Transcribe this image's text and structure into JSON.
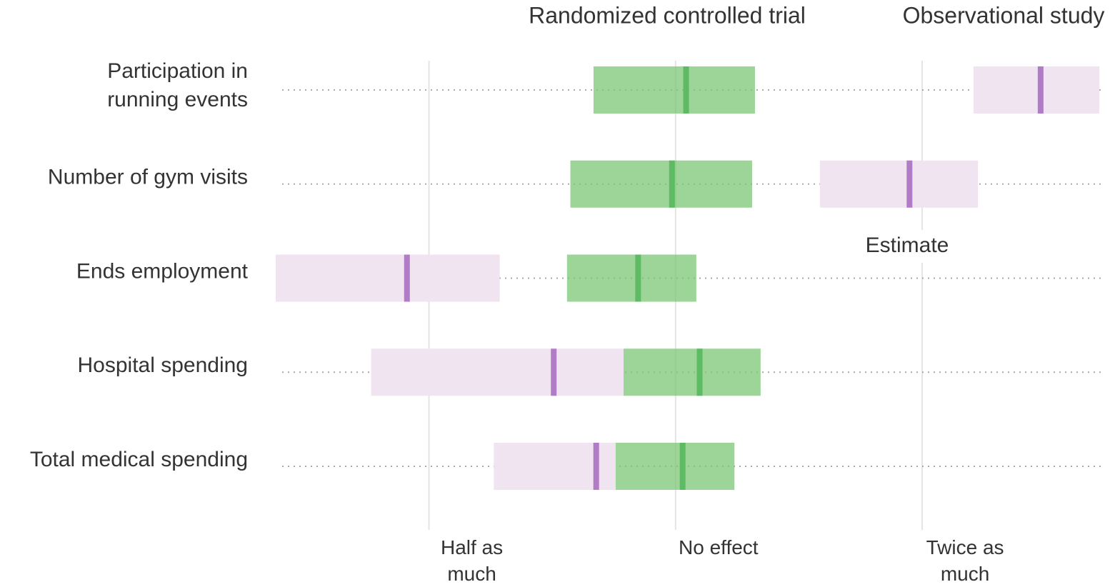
{
  "chart_data": {
    "type": "interval",
    "categories": [
      "Participation in running events",
      "Number of gym visits",
      "Ends employment",
      "Hospital spending",
      "Total medical spending"
    ],
    "series": [
      {
        "name": "Observational study",
        "color": "#f1e4f1",
        "estimate_color": "#b07cc6",
        "low": [
          2.31,
          1.5,
          0.325,
          0.425,
          0.6
        ],
        "values": [
          2.79,
          1.93,
          0.47,
          0.71,
          0.8
        ],
        "high": [
          3.29,
          2.34,
          0.61,
          0.864,
          0.845
        ]
      },
      {
        "name": "Randomized controlled trial",
        "color": "#7cc576",
        "estimate_color": "#5dbb63",
        "low": [
          0.794,
          0.744,
          0.737,
          0.864,
          0.845
        ],
        "values": [
          1.03,
          0.99,
          0.9,
          1.07,
          1.02
        ],
        "high": [
          1.25,
          1.24,
          1.06,
          1.27,
          1.18
        ]
      }
    ],
    "log_scale": true,
    "xlim": [
      0.325,
      3.33
    ],
    "xticks": [
      {
        "value": 0.5,
        "label": "Half as much"
      },
      {
        "value": 1,
        "label": "No effect"
      },
      {
        "value": 2,
        "label": "Twice as much"
      }
    ],
    "grid": true,
    "annotation": "Estimate"
  }
}
